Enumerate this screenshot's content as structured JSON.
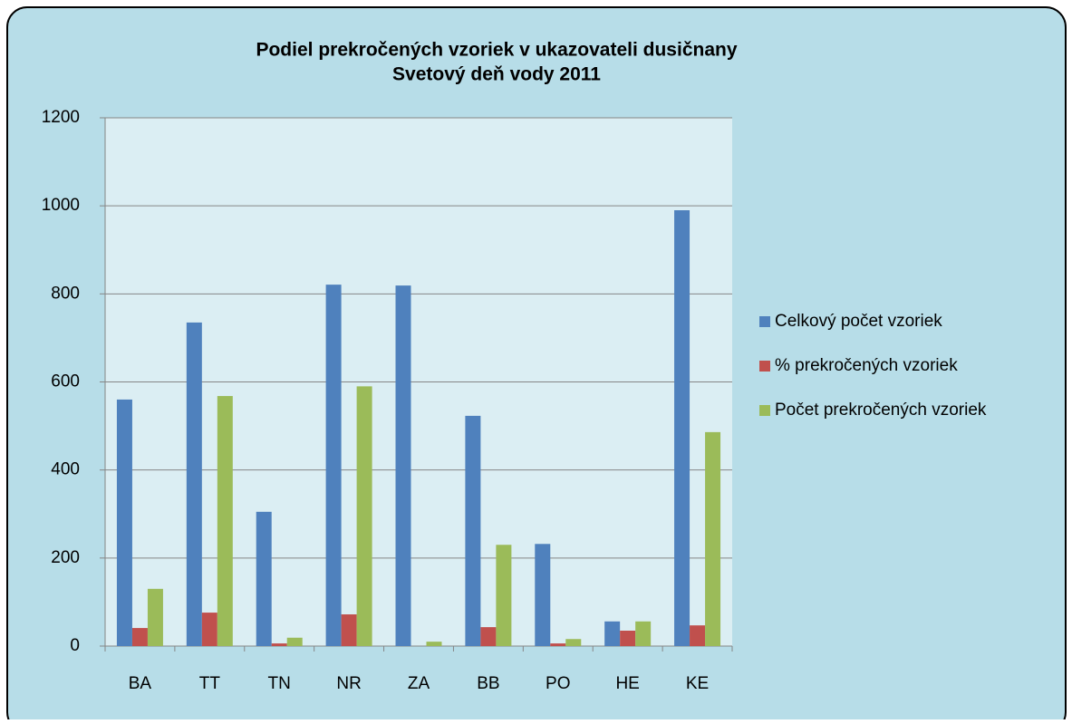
{
  "chart_data": {
    "type": "bar",
    "title": "Podiel prekročených vzoriek v ukazovateli dusičnany",
    "subtitle": "Svetový deň vody 2011",
    "categories": [
      "BA",
      "TT",
      "TN",
      "NR",
      "ZA",
      "BB",
      "PO",
      "HE",
      "KE"
    ],
    "series": [
      {
        "name": "Celkový počet vzoriek",
        "color": "#4f81bd",
        "values": [
          560,
          735,
          305,
          821,
          819,
          523,
          232,
          56,
          990
        ]
      },
      {
        "name": "% prekročených vzoriek",
        "color": "#c0504d",
        "values": [
          41,
          76,
          6,
          72,
          0,
          43,
          6,
          35,
          47
        ]
      },
      {
        "name": "Počet prekročených vzoriek",
        "color": "#9bbb59",
        "values": [
          130,
          568,
          19,
          590,
          10,
          230,
          16,
          56,
          486
        ]
      }
    ],
    "ylim": [
      0,
      1200
    ],
    "yticks": [
      0,
      200,
      400,
      600,
      800,
      1000,
      1200
    ],
    "grid": true,
    "legend": "right"
  }
}
